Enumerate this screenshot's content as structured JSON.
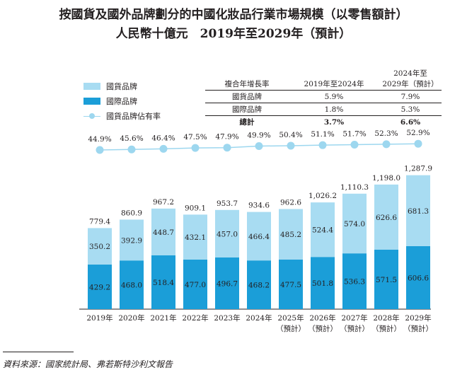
{
  "title_line1": "按國貨及國外品牌劃分的中國化妝品行業市場規模（以零售額計）",
  "title_line2": "人民幣十億元　2019年至2029年（預計）",
  "legend": {
    "domestic": "國貨品牌",
    "international": "國際品牌",
    "share": "國貨品牌佔有率"
  },
  "cagr_table": {
    "header": [
      "複合年增長率",
      "2019年至2024年",
      "2024年至\n2029年（預計）"
    ],
    "rows": [
      [
        "國貨品牌",
        "5.9%",
        "7.9%"
      ],
      [
        "國際品牌",
        "1.8%",
        "5.3%"
      ],
      [
        "總計",
        "3.7%",
        "6.6%"
      ]
    ]
  },
  "source": "資料來源：國家統計局、弗若斯特沙利文報告",
  "colors": {
    "domestic": "#a8dcf2",
    "international": "#1b9ed8",
    "share_line": "#9dd7ef"
  },
  "chart_data": {
    "type": "bar",
    "stacked": true,
    "categories": [
      "2019年",
      "2020年",
      "2021年",
      "2022年",
      "2023年",
      "2024年",
      "2025年\n（預計）",
      "2026年\n（預計）",
      "2027年\n（預計）",
      "2028年\n（預計）",
      "2029年\n（預計）"
    ],
    "series": [
      {
        "name": "國際品牌",
        "values": [
          429.2,
          468.0,
          518.4,
          477.0,
          496.7,
          468.2,
          477.5,
          501.8,
          536.3,
          571.5,
          606.6
        ]
      },
      {
        "name": "國貨品牌",
        "values": [
          350.2,
          392.9,
          448.7,
          432.1,
          457.0,
          466.4,
          485.2,
          524.4,
          574.0,
          626.6,
          681.3
        ]
      }
    ],
    "totals": [
      "779.4",
      "860.9",
      "967.2",
      "909.1",
      "953.7",
      "934.6",
      "962.6",
      "1,026.2",
      "1,110.3",
      "1,198.0",
      "1,287.9"
    ],
    "share_name": "國貨品牌佔有率",
    "share": [
      44.9,
      45.6,
      46.4,
      47.5,
      47.9,
      49.9,
      50.4,
      51.1,
      51.7,
      52.3,
      52.9
    ],
    "share_labels": [
      "44.9%",
      "45.6%",
      "46.4%",
      "47.5%",
      "47.9%",
      "49.9%",
      "50.4%",
      "51.1%",
      "51.7%",
      "52.3%",
      "52.9%"
    ],
    "ylim": [
      0,
      1300
    ]
  }
}
